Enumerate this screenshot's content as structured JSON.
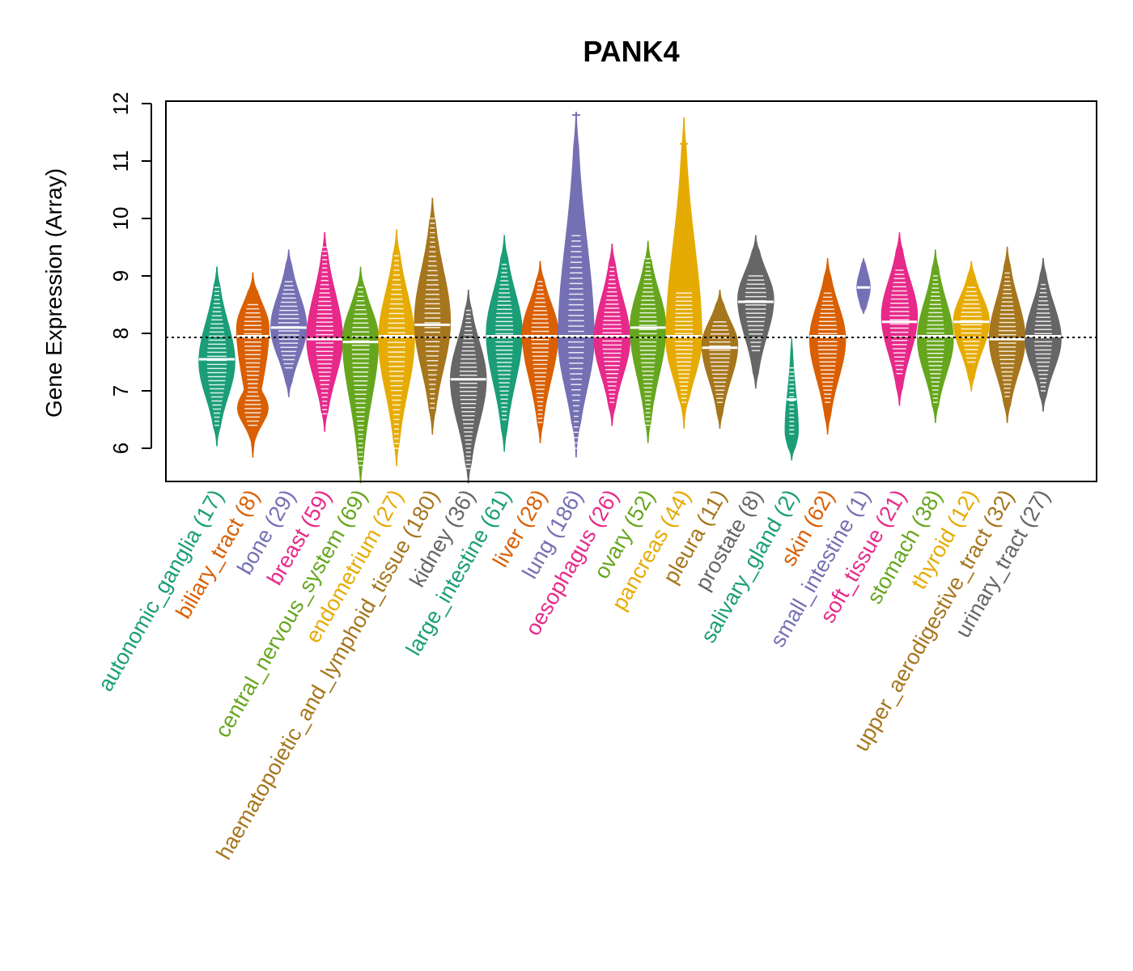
{
  "chart_data": {
    "type": "violin",
    "title": "PANK4",
    "ylabel": "Gene Expression (Array)",
    "xlabel": "",
    "ylim": [
      5.4,
      12.1
    ],
    "yticks": [
      6,
      7,
      8,
      9,
      10,
      11,
      12
    ],
    "reference_line": 7.93,
    "categories": [
      {
        "name": "autonomic_ganglia",
        "count": "(17)",
        "color": "#1b9e77",
        "min": 6.05,
        "max": 9.15,
        "median": 7.55,
        "mode": 7.5,
        "lo": 6.4,
        "hi": 8.8,
        "dense": 0.55
      },
      {
        "name": "biliary_tract",
        "count": "(8)",
        "color": "#d95f02",
        "min": 5.85,
        "max": 9.05,
        "median": 7.95,
        "mode": 8.1,
        "lo": 6.4,
        "hi": 8.5,
        "dense": 0.55,
        "bimodal": 6.7
      },
      {
        "name": "bone",
        "count": "(29)",
        "color": "#7570b3",
        "min": 6.9,
        "max": 9.45,
        "median": 8.1,
        "mode": 8.1,
        "lo": 7.4,
        "hi": 8.9,
        "dense": 0.6
      },
      {
        "name": "breast",
        "count": "(59)",
        "color": "#e7298a",
        "min": 6.3,
        "max": 9.75,
        "median": 7.9,
        "mode": 7.9,
        "lo": 6.6,
        "hi": 9.5,
        "dense": 0.5
      },
      {
        "name": "central_nervous_system",
        "count": "(69)",
        "color": "#66a61e",
        "min": 5.4,
        "max": 9.15,
        "median": 7.85,
        "mode": 7.9,
        "lo": 5.7,
        "hi": 8.8,
        "dense": 0.5
      },
      {
        "name": "endometrium",
        "count": "(27)",
        "color": "#e6ab02",
        "min": 5.7,
        "max": 9.8,
        "median": 7.95,
        "mode": 7.9,
        "lo": 6.0,
        "hi": 9.35,
        "dense": 0.5
      },
      {
        "name": "haematopoietic_and_lymphoid_tissue",
        "count": "(180)",
        "color": "#a6761d",
        "min": 6.25,
        "max": 10.35,
        "median": 8.15,
        "mode": 8.2,
        "lo": 6.7,
        "hi": 10.0,
        "dense": 0.45
      },
      {
        "name": "kidney",
        "count": "(36)",
        "color": "#666666",
        "min": 5.4,
        "max": 8.75,
        "median": 7.2,
        "mode": 7.2,
        "lo": 5.65,
        "hi": 8.4,
        "dense": 0.5
      },
      {
        "name": "large_intestine",
        "count": "(61)",
        "color": "#1b9e77",
        "min": 5.95,
        "max": 9.7,
        "median": 7.95,
        "mode": 8.0,
        "lo": 6.5,
        "hi": 9.2,
        "dense": 0.5
      },
      {
        "name": "liver",
        "count": "(28)",
        "color": "#d95f02",
        "min": 6.1,
        "max": 9.25,
        "median": 7.95,
        "mode": 8.0,
        "lo": 6.45,
        "hi": 8.9,
        "dense": 0.5
      },
      {
        "name": "lung",
        "count": "(186)",
        "color": "#7570b3",
        "min": 5.85,
        "max": 11.85,
        "median": 7.95,
        "mode": 7.9,
        "lo": 6.0,
        "hi": 9.7,
        "dense": 0.45,
        "outliers": [
          11.8
        ]
      },
      {
        "name": "oesophagus",
        "count": "(26)",
        "color": "#e7298a",
        "min": 6.4,
        "max": 9.55,
        "median": 7.95,
        "mode": 7.9,
        "lo": 6.8,
        "hi": 9.15,
        "dense": 0.55
      },
      {
        "name": "ovary",
        "count": "(52)",
        "color": "#66a61e",
        "min": 6.1,
        "max": 9.6,
        "median": 8.1,
        "mode": 8.1,
        "lo": 6.4,
        "hi": 9.3,
        "dense": 0.5
      },
      {
        "name": "pancreas",
        "count": "(44)",
        "color": "#e6ab02",
        "min": 6.35,
        "max": 11.75,
        "median": 7.95,
        "mode": 7.9,
        "lo": 6.8,
        "hi": 8.7,
        "dense": 0.5,
        "outliers": [
          11.3
        ]
      },
      {
        "name": "pleura",
        "count": "(11)",
        "color": "#a6761d",
        "min": 6.35,
        "max": 8.75,
        "median": 7.75,
        "mode": 7.8,
        "lo": 6.8,
        "hi": 8.2,
        "dense": 0.6
      },
      {
        "name": "prostate",
        "count": "(8)",
        "color": "#666666",
        "min": 7.05,
        "max": 9.7,
        "median": 8.55,
        "mode": 8.6,
        "lo": 7.7,
        "hi": 9.0,
        "dense": 0.6
      },
      {
        "name": "salivary_gland",
        "count": "(2)",
        "color": "#1b9e77",
        "min": 5.8,
        "max": 7.9,
        "median": 6.85,
        "mode": 6.3,
        "lo": 6.25,
        "hi": 7.4,
        "dense": 0.3,
        "thin": true
      },
      {
        "name": "skin",
        "count": "(62)",
        "color": "#d95f02",
        "min": 6.25,
        "max": 9.3,
        "median": 7.95,
        "mode": 7.9,
        "lo": 6.8,
        "hi": 8.7,
        "dense": 0.55
      },
      {
        "name": "small_intestine",
        "count": "(1)",
        "color": "#7570b3",
        "min": 8.35,
        "max": 9.3,
        "median": 8.8,
        "mode": 8.8,
        "lo": 8.8,
        "hi": 8.8,
        "dense": 0.3,
        "thin": true
      },
      {
        "name": "soft_tissue",
        "count": "(21)",
        "color": "#e7298a",
        "min": 6.75,
        "max": 9.75,
        "median": 8.2,
        "mode": 8.3,
        "lo": 7.3,
        "hi": 9.1,
        "dense": 0.55
      },
      {
        "name": "stomach",
        "count": "(38)",
        "color": "#66a61e",
        "min": 6.45,
        "max": 9.45,
        "median": 7.95,
        "mode": 7.9,
        "lo": 6.8,
        "hi": 9.0,
        "dense": 0.5
      },
      {
        "name": "thyroid",
        "count": "(12)",
        "color": "#e6ab02",
        "min": 7.0,
        "max": 9.25,
        "median": 8.2,
        "mode": 8.2,
        "lo": 7.5,
        "hi": 8.8,
        "dense": 0.6
      },
      {
        "name": "upper_aerodigestive_tract",
        "count": "(32)",
        "color": "#a6761d",
        "min": 6.45,
        "max": 9.5,
        "median": 7.9,
        "mode": 7.9,
        "lo": 6.9,
        "hi": 9.05,
        "dense": 0.5
      },
      {
        "name": "urinary_tract",
        "count": "(27)",
        "color": "#666666",
        "min": 6.65,
        "max": 9.3,
        "median": 7.95,
        "mode": 7.9,
        "lo": 7.0,
        "hi": 8.85,
        "dense": 0.5
      }
    ]
  }
}
